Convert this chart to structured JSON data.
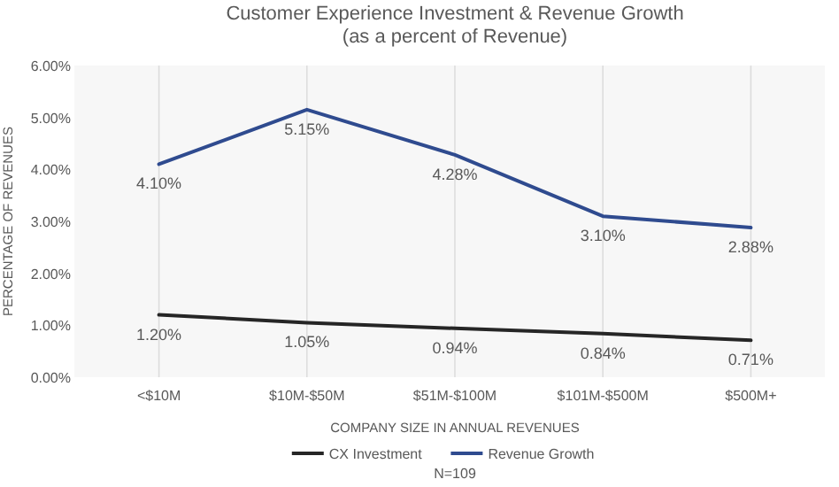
{
  "chart_data": {
    "type": "line",
    "title": "Customer Experience Investment & Revenue Growth",
    "subtitle": "(as a percent of Revenue)",
    "xlabel": "COMPANY SIZE IN ANNUAL REVENUES",
    "ylabel": "PERCENTAGE OF REVENUES",
    "categories": [
      "<$10M",
      "$10M-$50M",
      "$51M-$100M",
      "$101M-$500M",
      "$500M+"
    ],
    "series": [
      {
        "name": "CX Investment",
        "color": "#262626",
        "values": [
          1.2,
          1.05,
          0.94,
          0.84,
          0.71
        ],
        "value_labels": [
          "1.20%",
          "1.05%",
          "0.94%",
          "0.84%",
          "0.71%"
        ]
      },
      {
        "name": "Revenue Growth",
        "color": "#2f4b8f",
        "values": [
          4.1,
          5.15,
          4.28,
          3.1,
          2.88
        ],
        "value_labels": [
          "4.10%",
          "5.15%",
          "4.28%",
          "3.10%",
          "2.88%"
        ]
      }
    ],
    "ylim": [
      0,
      6
    ],
    "yticks": [
      {
        "value": 0,
        "label": "0.00%"
      },
      {
        "value": 1,
        "label": "1.00%"
      },
      {
        "value": 2,
        "label": "2.00%"
      },
      {
        "value": 3,
        "label": "3.00%"
      },
      {
        "value": 4,
        "label": "4.00%"
      },
      {
        "value": 5,
        "label": "5.00%"
      },
      {
        "value": 6,
        "label": "6.00%"
      }
    ],
    "grid": "x",
    "legend": "bottom",
    "marker": "none",
    "line_style": "solid",
    "annotations": [
      "N=109"
    ]
  }
}
